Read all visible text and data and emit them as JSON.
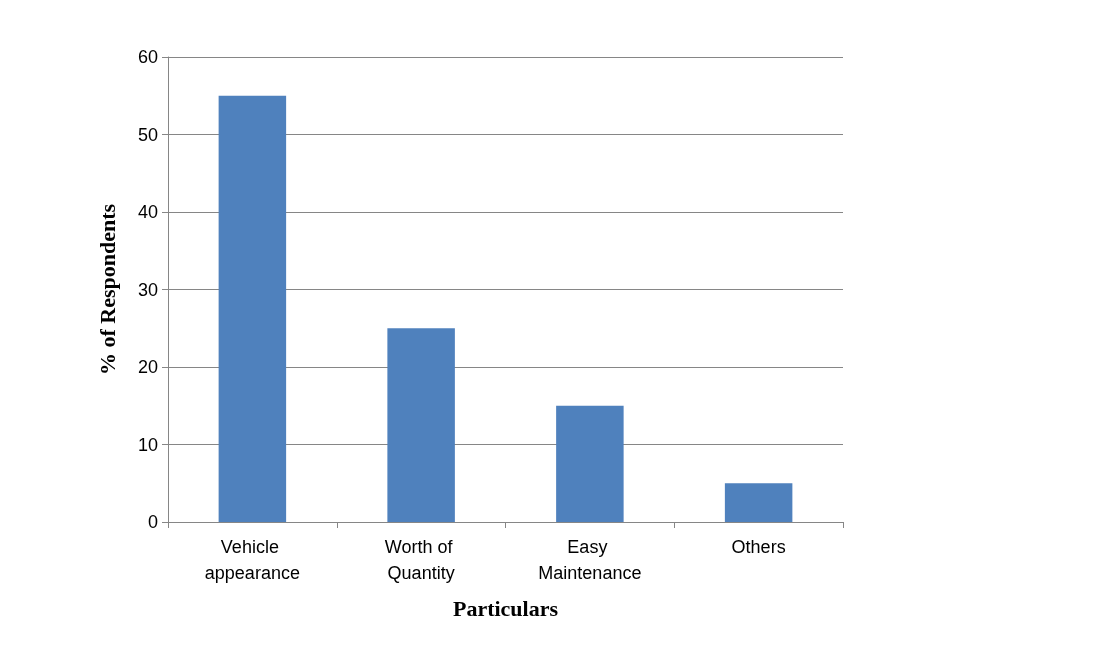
{
  "chart_data": {
    "type": "bar",
    "xlabel": "Particulars",
    "ylabel": "% of Respondents",
    "categories": [
      "Vehicle appearance",
      "Worth of Quantity",
      "Easy Maintenance",
      "Others"
    ],
    "values": [
      55,
      25,
      15,
      5
    ],
    "color": "#4f81bd",
    "ylim": [
      0,
      60
    ],
    "yticks": [
      0,
      10,
      20,
      30,
      40,
      50,
      60
    ],
    "grid": "y"
  }
}
